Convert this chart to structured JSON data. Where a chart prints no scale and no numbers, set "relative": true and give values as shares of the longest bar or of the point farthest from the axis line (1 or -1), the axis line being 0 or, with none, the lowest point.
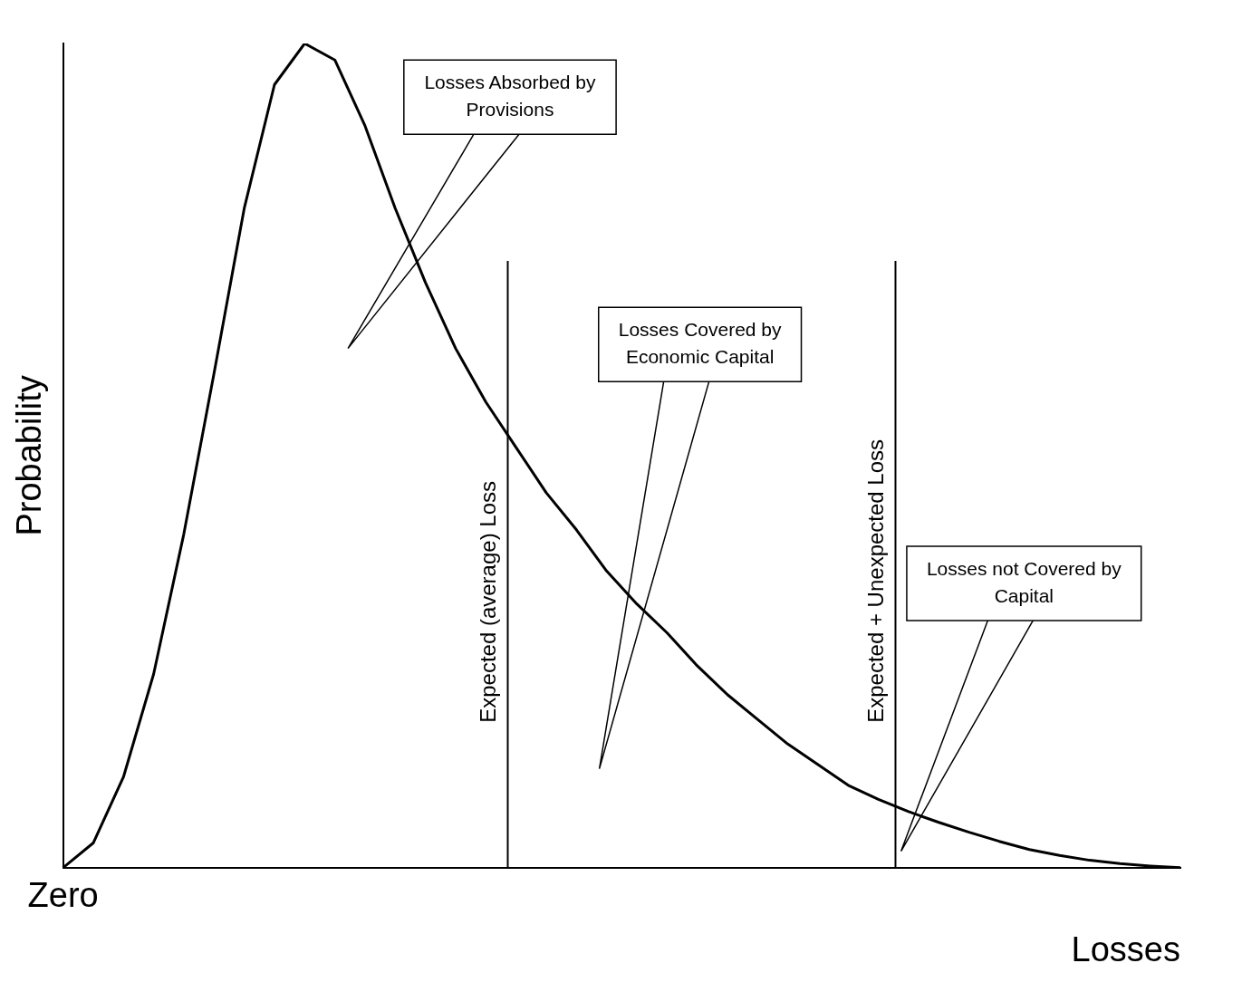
{
  "chart_data": {
    "type": "line",
    "relative": true,
    "ylabel": "Probability",
    "xlabel": "Losses",
    "marker": "none",
    "color": "#000000",
    "categories": [
      null,
      null,
      null,
      null,
      null,
      null,
      null,
      null,
      null,
      null,
      null,
      null,
      null,
      null,
      null,
      null,
      null,
      null,
      null,
      null,
      null,
      null,
      null,
      null,
      null,
      null,
      null,
      null,
      null,
      null,
      null,
      null,
      null,
      null,
      null,
      null,
      null,
      null
    ],
    "values": [
      0,
      0.03,
      0.11,
      0.235,
      0.405,
      0.6,
      0.8,
      0.95,
      1,
      0.98,
      0.9,
      0.8,
      0.71,
      0.63,
      0.565,
      0.51,
      0.455,
      0.41,
      0.36,
      0.32,
      0.285,
      0.245,
      0.21,
      0.18,
      0.15,
      0.125,
      0.1,
      0.083,
      0.068,
      0.055,
      0.043,
      0.032,
      0.022,
      0.015,
      0.009,
      0.005,
      0.002,
      0
    ],
    "annotations": [
      "Zero",
      "Losses Absorbed by Provisions",
      "Losses Covered by Economic Capital",
      "Losses not Covered by Capital",
      "Expected (average) Loss",
      "Expected + Unexpected Loss"
    ]
  }
}
